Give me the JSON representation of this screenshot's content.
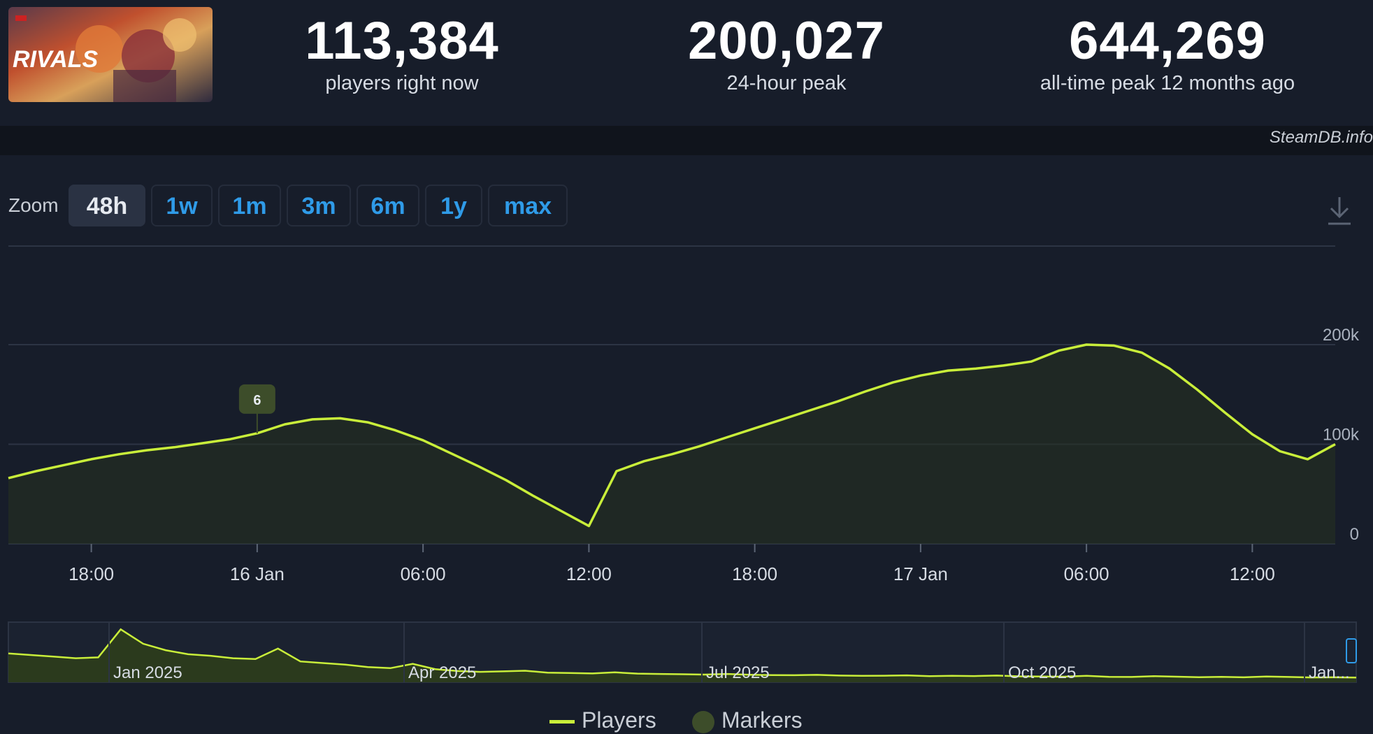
{
  "header": {
    "game_logo_text": "RIVALS",
    "stats": [
      {
        "value": "113,384",
        "label": "players right now"
      },
      {
        "value": "200,027",
        "label": "24-hour peak"
      },
      {
        "value": "644,269",
        "label": "all-time peak 12 months ago"
      }
    ],
    "source": "SteamDB.info"
  },
  "zoom": {
    "label": "Zoom",
    "options": [
      "48h",
      "1w",
      "1m",
      "3m",
      "6m",
      "1y",
      "max"
    ],
    "selected": "48h"
  },
  "colors": {
    "line": "#c9ee3a",
    "marker": "#3d4d2a",
    "link": "#2f9be8",
    "background": "#171d2a"
  },
  "chart_data": {
    "type": "line",
    "series": [
      {
        "name": "Players",
        "x": [
          "15 Jan 15:00",
          "15 Jan 16:00",
          "15 Jan 17:00",
          "15 Jan 18:00",
          "15 Jan 19:00",
          "15 Jan 20:00",
          "15 Jan 21:00",
          "15 Jan 22:00",
          "15 Jan 23:00",
          "16 Jan 00:00",
          "16 Jan 01:00",
          "16 Jan 02:00",
          "16 Jan 03:00",
          "16 Jan 04:00",
          "16 Jan 05:00",
          "16 Jan 06:00",
          "16 Jan 07:00",
          "16 Jan 08:00",
          "16 Jan 09:00",
          "16 Jan 10:00",
          "16 Jan 11:00",
          "16 Jan 12:00",
          "16 Jan 13:00",
          "16 Jan 14:00",
          "16 Jan 15:00",
          "16 Jan 16:00",
          "16 Jan 17:00",
          "16 Jan 18:00",
          "16 Jan 19:00",
          "16 Jan 20:00",
          "16 Jan 21:00",
          "16 Jan 22:00",
          "16 Jan 23:00",
          "17 Jan 00:00",
          "17 Jan 01:00",
          "17 Jan 02:00",
          "17 Jan 03:00",
          "17 Jan 04:00",
          "17 Jan 05:00",
          "17 Jan 06:00",
          "17 Jan 07:00",
          "17 Jan 08:00",
          "17 Jan 09:00",
          "17 Jan 10:00",
          "17 Jan 11:00",
          "17 Jan 12:00",
          "17 Jan 13:00",
          "17 Jan 14:00",
          "17 Jan 15:00"
        ],
        "values": [
          66000,
          73000,
          79000,
          85000,
          90000,
          94000,
          97000,
          101000,
          105000,
          111000,
          120000,
          125000,
          126000,
          122000,
          114000,
          104000,
          91000,
          78000,
          64000,
          48000,
          33000,
          18000,
          73000,
          83000,
          90000,
          98000,
          107000,
          116000,
          125000,
          134000,
          143000,
          153000,
          162000,
          169000,
          174000,
          176000,
          179000,
          183000,
          194000,
          200000,
          199000,
          192000,
          176000,
          155000,
          132000,
          110000,
          93000,
          85000,
          100000
        ]
      }
    ],
    "markers": [
      {
        "x": "16 Jan 00:00",
        "label": "6"
      }
    ],
    "x_ticks": [
      "18:00",
      "16 Jan",
      "06:00",
      "12:00",
      "18:00",
      "17 Jan",
      "06:00",
      "12:00"
    ],
    "y_ticks": [
      "0",
      "100k",
      "200k"
    ],
    "ylim": [
      0,
      200000
    ],
    "grid": true,
    "navigator": {
      "labels": [
        "Jan 2025",
        "Apr 2025",
        "Jul 2025",
        "Oct 2025",
        "Jan..."
      ],
      "values": [
        180000,
        170000,
        160000,
        150000,
        155000,
        330000,
        240000,
        200000,
        175000,
        165000,
        150000,
        145000,
        210000,
        130000,
        120000,
        110000,
        95000,
        88000,
        115000,
        82000,
        70000,
        65000,
        68000,
        72000,
        60000,
        58000,
        55000,
        62000,
        54000,
        52000,
        50000,
        48000,
        52000,
        47000,
        45000,
        44000,
        46000,
        42000,
        40000,
        41000,
        43000,
        38000,
        40000,
        39000,
        42000,
        37000,
        36000,
        35000,
        40000,
        34000,
        33000,
        38000,
        35000,
        32000,
        34000,
        31000,
        36000,
        33000,
        30000,
        31000,
        29000
      ]
    },
    "legend": [
      "Players",
      "Markers"
    ]
  }
}
